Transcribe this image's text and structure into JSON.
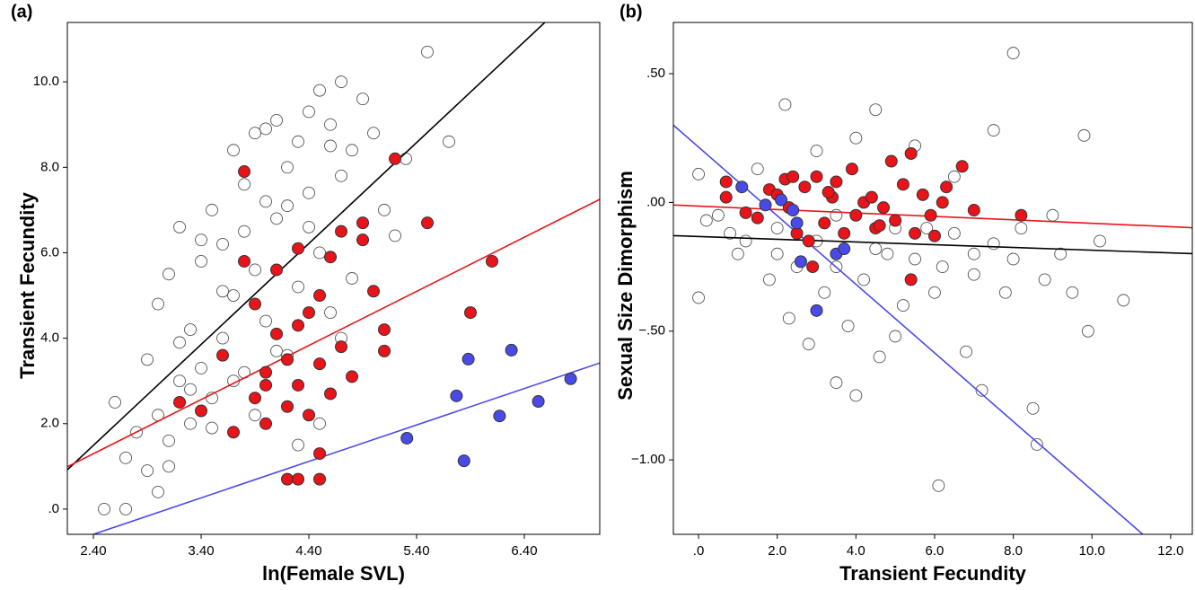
{
  "chart_data": [
    {
      "type": "scatter",
      "label": "(a)",
      "xlabel": "ln(Female SVL)",
      "ylabel": "Transient Fecundity",
      "xlim": [
        2.158,
        7.1
      ],
      "ylim": [
        -0.59,
        11.39
      ],
      "xticks": [
        {
          "value": 2.4,
          "label": "2.40"
        },
        {
          "value": 3.4,
          "label": "3.40"
        },
        {
          "value": 4.4,
          "label": "4.40"
        },
        {
          "value": 5.4,
          "label": "5.40"
        },
        {
          "value": 6.4,
          "label": "6.40"
        }
      ],
      "yticks": [
        {
          "value": 0,
          "label": ".0"
        },
        {
          "value": 2,
          "label": "2.0"
        },
        {
          "value": 4,
          "label": "4.0"
        },
        {
          "value": 6,
          "label": "6.0"
        },
        {
          "value": 8,
          "label": "8.0"
        },
        {
          "value": 10,
          "label": "10.0"
        }
      ],
      "series": [
        {
          "color": "#555555",
          "filled": false,
          "x": [
            2.5,
            2.6,
            2.7,
            2.8,
            2.9,
            3.0,
            3.0,
            3.1,
            3.1,
            3.2,
            3.2,
            3.3,
            3.3,
            3.4,
            3.4,
            3.5,
            3.5,
            3.6,
            3.6,
            3.7,
            3.7,
            3.8,
            3.8,
            3.9,
            3.9,
            4.0,
            4.0,
            4.1,
            4.1,
            4.2,
            4.2,
            4.3,
            4.3,
            4.4,
            4.4,
            4.5,
            4.5,
            4.6,
            4.6,
            4.7,
            4.7,
            4.8,
            4.8,
            4.9,
            5.0,
            5.1,
            5.2,
            5.3,
            5.5,
            5.7,
            2.9,
            3.1,
            3.3,
            3.5,
            3.7,
            3.9,
            4.1,
            4.3,
            4.5,
            4.7,
            2.7,
            3.0,
            3.2,
            3.4,
            3.6,
            3.8,
            4.0,
            4.2,
            4.4,
            4.6
          ],
          "values": [
            0.0,
            2.5,
            1.2,
            1.8,
            3.5,
            4.8,
            2.2,
            5.5,
            1.0,
            3.0,
            6.6,
            4.2,
            2.0,
            5.8,
            3.3,
            7.0,
            2.6,
            6.2,
            4.0,
            8.4,
            5.0,
            7.6,
            3.2,
            8.8,
            5.6,
            7.2,
            4.4,
            9.1,
            6.8,
            8.0,
            3.6,
            8.6,
            5.2,
            9.3,
            7.4,
            9.8,
            6.0,
            9.0,
            4.6,
            10.0,
            7.8,
            8.4,
            5.4,
            9.6,
            8.8,
            7.0,
            6.4,
            8.2,
            10.7,
            8.6,
            0.9,
            1.6,
            2.8,
            1.9,
            3.0,
            2.2,
            3.7,
            1.5,
            2.0,
            4.0,
            0.0,
            0.4,
            3.9,
            6.3,
            5.1,
            6.5,
            8.9,
            7.1,
            6.6,
            8.5
          ]
        },
        {
          "color": "#e8141a",
          "filled": true,
          "x": [
            3.8,
            5.2,
            5.5,
            6.1,
            5.9,
            5.1,
            5.1,
            5.0,
            4.9,
            4.9,
            4.5,
            4.2,
            4.3,
            4.5,
            3.2,
            3.4,
            3.6,
            3.7,
            3.8,
            3.9,
            3.9,
            4.0,
            4.0,
            4.1,
            4.1,
            4.2,
            4.2,
            4.3,
            4.3,
            4.4,
            4.4,
            4.5,
            4.5,
            4.6,
            4.6,
            4.7,
            4.7,
            4.8,
            4.0,
            4.3
          ],
          "values": [
            7.9,
            8.2,
            6.7,
            5.8,
            4.6,
            4.2,
            3.7,
            5.1,
            6.3,
            6.7,
            0.7,
            0.7,
            0.7,
            1.3,
            2.5,
            2.3,
            3.6,
            1.8,
            5.8,
            2.6,
            4.8,
            3.2,
            2.0,
            5.6,
            4.1,
            2.4,
            3.5,
            6.1,
            2.9,
            4.6,
            2.2,
            5.0,
            3.4,
            5.9,
            2.7,
            3.8,
            6.5,
            3.1,
            2.9,
            4.3
          ]
        },
        {
          "color": "#4a4ae8",
          "filled": true,
          "x": [
            5.31,
            5.77,
            5.88,
            5.84,
            6.17,
            6.28,
            6.53,
            6.83
          ],
          "values": [
            1.66,
            2.65,
            3.51,
            1.13,
            2.18,
            3.72,
            2.52,
            3.05
          ]
        }
      ],
      "lines": [
        {
          "color": "#000000",
          "x": [
            2.158,
            6.59
          ],
          "values": [
            0.92,
            11.39
          ]
        },
        {
          "color": "#e8141a",
          "x": [
            2.158,
            7.1
          ],
          "values": [
            0.99,
            7.25
          ]
        },
        {
          "color": "#4a4ae8",
          "x": [
            2.4,
            7.1
          ],
          "values": [
            -0.59,
            3.42
          ]
        }
      ]
    },
    {
      "type": "scatter",
      "label": "(b)",
      "xlabel": "Transient Fecundity",
      "ylabel": "Sexual Size Dimorphism",
      "xlim": [
        -0.64,
        12.55
      ],
      "ylim": [
        -1.289,
        0.699
      ],
      "xticks": [
        {
          "value": 0,
          "label": ".0"
        },
        {
          "value": 2,
          "label": "2.0"
        },
        {
          "value": 4,
          "label": "4.0"
        },
        {
          "value": 6,
          "label": "6.0"
        },
        {
          "value": 8,
          "label": "8.0"
        },
        {
          "value": 10,
          "label": "10.0"
        },
        {
          "value": 12,
          "label": "12.0"
        }
      ],
      "yticks": [
        {
          "value": -1,
          "label": "−1.00"
        },
        {
          "value": -0.5,
          "label": "−.50"
        },
        {
          "value": 0,
          "label": ".00"
        },
        {
          "value": 0.5,
          "label": ".50"
        }
      ],
      "series": [
        {
          "color": "#555555",
          "filled": false,
          "x": [
            0.0,
            0.0,
            0.2,
            0.5,
            0.8,
            1.0,
            1.2,
            1.5,
            1.8,
            2.0,
            2.2,
            2.3,
            2.5,
            2.8,
            3.0,
            3.2,
            3.5,
            3.5,
            3.8,
            4.0,
            4.0,
            4.2,
            4.5,
            4.6,
            4.8,
            5.0,
            5.2,
            5.5,
            5.8,
            6.0,
            6.1,
            6.2,
            6.5,
            6.8,
            7.0,
            7.2,
            7.5,
            7.8,
            8.0,
            8.2,
            8.5,
            8.6,
            8.8,
            9.0,
            9.2,
            9.5,
            9.8,
            9.9,
            10.2,
            10.8,
            3.0,
            4.5,
            5.5,
            6.5,
            7.5,
            2.0,
            3.5,
            5.0,
            7.0,
            8.0
          ],
          "values": [
            0.11,
            -0.37,
            -0.07,
            -0.05,
            -0.12,
            -0.2,
            -0.15,
            0.13,
            -0.3,
            -0.1,
            0.38,
            -0.45,
            -0.25,
            -0.55,
            0.2,
            -0.35,
            -0.7,
            -0.05,
            -0.48,
            -0.75,
            0.25,
            -0.3,
            0.36,
            -0.6,
            -0.2,
            -0.52,
            -0.4,
            0.22,
            -0.1,
            -0.35,
            -1.1,
            -0.25,
            0.1,
            -0.58,
            -0.2,
            -0.73,
            0.28,
            -0.35,
            0.58,
            -0.1,
            -0.8,
            -0.94,
            -0.3,
            -0.05,
            -0.2,
            -0.35,
            0.26,
            -0.5,
            -0.15,
            -0.38,
            -0.15,
            -0.18,
            -0.22,
            -0.12,
            -0.16,
            -0.2,
            -0.25,
            -0.1,
            -0.28,
            -0.22
          ]
        },
        {
          "color": "#e8141a",
          "filled": true,
          "x": [
            0.7,
            0.7,
            1.2,
            1.5,
            1.8,
            2.0,
            2.2,
            2.4,
            2.5,
            2.7,
            2.9,
            3.0,
            3.2,
            3.4,
            3.5,
            3.7,
            3.9,
            4.0,
            4.2,
            4.4,
            4.5,
            4.7,
            4.9,
            5.0,
            5.2,
            5.4,
            5.5,
            5.7,
            5.9,
            6.0,
            6.2,
            6.3,
            6.7,
            7.0,
            8.2,
            2.3,
            3.3,
            4.6,
            5.4,
            2.8
          ],
          "values": [
            0.08,
            0.02,
            -0.04,
            -0.06,
            0.05,
            0.03,
            0.09,
            0.1,
            -0.12,
            0.06,
            -0.25,
            0.1,
            -0.08,
            0.02,
            0.08,
            -0.12,
            0.13,
            -0.05,
            0.0,
            0.02,
            -0.1,
            -0.02,
            0.16,
            -0.07,
            0.07,
            -0.3,
            -0.12,
            0.03,
            -0.05,
            -0.13,
            0.0,
            0.06,
            0.14,
            -0.03,
            -0.05,
            -0.02,
            0.04,
            -0.09,
            0.19,
            -0.15
          ]
        },
        {
          "color": "#4a4ae8",
          "filled": true,
          "x": [
            1.1,
            1.7,
            2.1,
            2.4,
            2.6,
            3.0,
            3.5,
            3.7,
            2.5
          ],
          "values": [
            0.06,
            -0.01,
            0.01,
            -0.03,
            -0.23,
            -0.42,
            -0.2,
            -0.18,
            -0.08
          ]
        }
      ],
      "lines": [
        {
          "color": "#000000",
          "x": [
            -0.64,
            12.55
          ],
          "values": [
            -0.129,
            -0.199
          ]
        },
        {
          "color": "#e8141a",
          "x": [
            -0.64,
            12.55
          ],
          "values": [
            -0.01,
            -0.098
          ]
        },
        {
          "color": "#4a4ae8",
          "x": [
            -0.64,
            11.29
          ],
          "values": [
            0.3,
            -1.289
          ]
        }
      ]
    }
  ]
}
